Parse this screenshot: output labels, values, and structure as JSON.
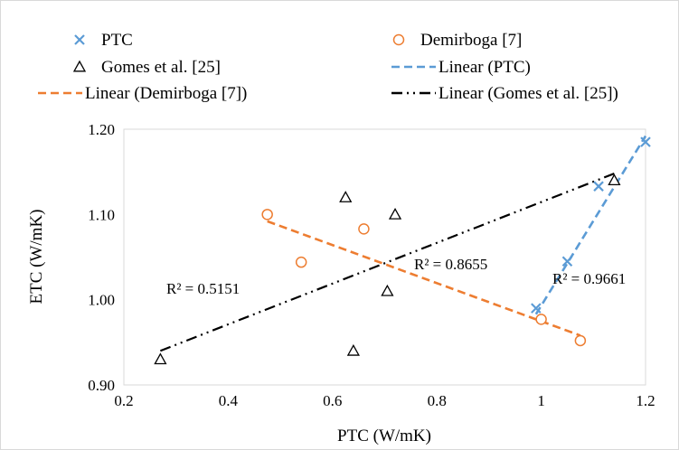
{
  "chart_data": {
    "type": "scatter",
    "xlabel": "PTC (W/mK)",
    "ylabel": "ETC (W/mK)",
    "xlim": [
      0.2,
      1.2
    ],
    "ylim": [
      0.9,
      1.2
    ],
    "x_ticks": [
      0.2,
      0.4,
      0.6,
      0.8,
      1.0,
      1.2
    ],
    "x_tick_labels": [
      "0.2",
      "0.4",
      "0.6",
      "0.8",
      "1",
      "1.2"
    ],
    "y_ticks": [
      0.9,
      1.0,
      1.1,
      1.2
    ],
    "y_tick_labels": [
      "0.90",
      "1.00",
      "1.10",
      "1.20"
    ],
    "grid": "none",
    "legend_position": "top",
    "series": [
      {
        "name": "PTC",
        "marker": "x",
        "color": "#5b9bd5",
        "points": [
          [
            0.99,
            0.99
          ],
          [
            1.05,
            1.045
          ],
          [
            1.11,
            1.133
          ],
          [
            1.2,
            1.185
          ]
        ]
      },
      {
        "name": "Demirboga [7]",
        "marker": "circle",
        "color": "#ed7d31",
        "points": [
          [
            0.475,
            1.1
          ],
          [
            0.54,
            1.044
          ],
          [
            0.66,
            1.083
          ],
          [
            1.0,
            0.977
          ],
          [
            1.075,
            0.952
          ]
        ]
      },
      {
        "name": "Gomes et al. [25]",
        "marker": "triangle",
        "color": "#000000",
        "points": [
          [
            0.27,
            0.93
          ],
          [
            0.625,
            1.12
          ],
          [
            0.64,
            0.94
          ],
          [
            0.705,
            1.01
          ],
          [
            0.72,
            1.1
          ],
          [
            1.14,
            1.14
          ]
        ]
      }
    ],
    "trendlines": [
      {
        "name": "Linear (PTC)",
        "color": "#5b9bd5",
        "dash": "dashed",
        "from": [
          0.99,
          0.983
        ],
        "to": [
          1.2,
          1.192
        ],
        "r2_label": "R² = 0.9661"
      },
      {
        "name": "Linear (Demirboga [7])",
        "color": "#ed7d31",
        "dash": "dashed",
        "from": [
          0.475,
          1.092
        ],
        "to": [
          1.075,
          0.958
        ],
        "r2_label": "R² = 0.8655"
      },
      {
        "name": "Linear (Gomes et al. [25])",
        "color": "#000000",
        "dash": "dash-dot-dot",
        "from": [
          0.27,
          0.94
        ],
        "to": [
          1.14,
          1.148
        ],
        "r2_label": "R² = 0.5151"
      }
    ],
    "legend": [
      {
        "label": "PTC",
        "kind": "marker",
        "marker": "x",
        "color": "#5b9bd5"
      },
      {
        "label": "Demirboga [7]",
        "kind": "marker",
        "marker": "circle",
        "color": "#ed7d31"
      },
      {
        "label": "Gomes et al. [25]",
        "kind": "marker",
        "marker": "triangle",
        "color": "#000000"
      },
      {
        "label": "Linear (PTC)",
        "kind": "line",
        "dash": "dashed",
        "color": "#5b9bd5"
      },
      {
        "label": "Linear (Demirboga [7])",
        "kind": "line",
        "dash": "dashed",
        "color": "#ed7d31"
      },
      {
        "label": "Linear (Gomes et al. [25])",
        "kind": "line",
        "dash": "dash-dot-dot",
        "color": "#000000"
      }
    ]
  }
}
